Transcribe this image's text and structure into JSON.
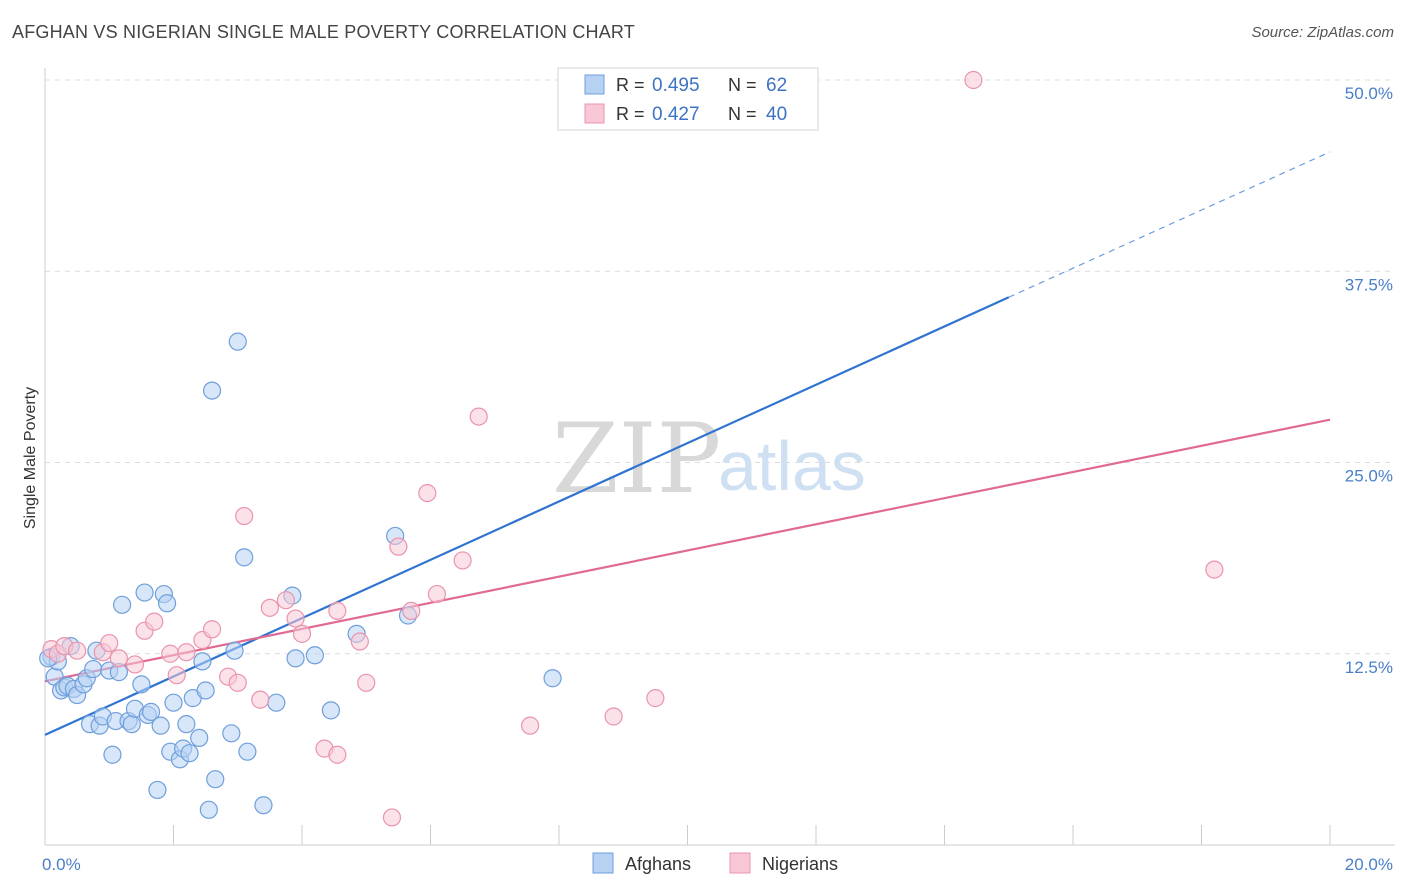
{
  "title": "AFGHAN VS NIGERIAN SINGLE MALE POVERTY CORRELATION CHART",
  "source": "Source: ZipAtlas.com",
  "watermark": {
    "zip": "ZIP",
    "atlas": "atlas"
  },
  "chart_data": {
    "type": "scatter",
    "ylabel": "Single Male Poverty",
    "xlim": [
      0,
      20
    ],
    "ylim": [
      0,
      50
    ],
    "x_ticks": [
      {
        "value": 0,
        "label": "0.0%"
      },
      {
        "value": 20,
        "label": "20.0%"
      }
    ],
    "y_ticks": [
      {
        "value": 12.5,
        "label": "12.5%"
      },
      {
        "value": 25,
        "label": "25.0%"
      },
      {
        "value": 37.5,
        "label": "37.5%"
      },
      {
        "value": 50,
        "label": "50.0%"
      }
    ],
    "grid": true,
    "legend": {
      "placement": "top-center",
      "entries": [
        {
          "r_label": "R = ",
          "r": "0.495",
          "n_label": "N = ",
          "n": "62"
        },
        {
          "r_label": "R = ",
          "r": "0.427",
          "n_label": "N = ",
          "n": "40"
        }
      ]
    },
    "series": [
      {
        "name": "Afghans",
        "color": "#6f9fdc",
        "fill": "#b7d1f2",
        "trend": {
          "x0": 0,
          "y0": 7.2,
          "x1": 15,
          "y1": 35.8,
          "dash_to_x": 20,
          "dash_to_y": 45.3,
          "color": "#2f74d0"
        },
        "points": [
          [
            0.1,
            12.3
          ],
          [
            0.15,
            11.0
          ],
          [
            0.2,
            12.0
          ],
          [
            0.25,
            10.1
          ],
          [
            0.3,
            10.3
          ],
          [
            0.35,
            10.4
          ],
          [
            0.4,
            13.0
          ],
          [
            0.45,
            10.2
          ],
          [
            0.5,
            9.8
          ],
          [
            0.6,
            10.5
          ],
          [
            0.65,
            10.9
          ],
          [
            0.7,
            7.9
          ],
          [
            0.75,
            11.5
          ],
          [
            0.8,
            12.7
          ],
          [
            0.85,
            7.8
          ],
          [
            0.9,
            8.4
          ],
          [
            1.0,
            11.4
          ],
          [
            1.05,
            5.9
          ],
          [
            1.1,
            8.1
          ],
          [
            1.15,
            11.3
          ],
          [
            1.2,
            15.7
          ],
          [
            1.3,
            8.1
          ],
          [
            1.35,
            7.9
          ],
          [
            1.4,
            8.9
          ],
          [
            1.5,
            10.5
          ],
          [
            1.55,
            16.5
          ],
          [
            1.6,
            8.5
          ],
          [
            1.65,
            8.7
          ],
          [
            1.75,
            3.6
          ],
          [
            1.8,
            7.8
          ],
          [
            1.85,
            16.4
          ],
          [
            1.9,
            15.8
          ],
          [
            1.95,
            6.1
          ],
          [
            2.0,
            9.3
          ],
          [
            2.1,
            5.6
          ],
          [
            2.15,
            6.3
          ],
          [
            2.2,
            7.9
          ],
          [
            2.25,
            6.0
          ],
          [
            2.3,
            9.6
          ],
          [
            2.4,
            7.0
          ],
          [
            2.45,
            12.0
          ],
          [
            2.5,
            10.1
          ],
          [
            2.55,
            2.3
          ],
          [
            2.6,
            29.7
          ],
          [
            2.65,
            4.3
          ],
          [
            2.9,
            7.3
          ],
          [
            2.95,
            12.7
          ],
          [
            3.0,
            32.9
          ],
          [
            3.1,
            18.8
          ],
          [
            3.15,
            6.1
          ],
          [
            3.4,
            2.6
          ],
          [
            3.6,
            9.3
          ],
          [
            3.85,
            16.3
          ],
          [
            3.9,
            12.2
          ],
          [
            4.2,
            12.4
          ],
          [
            4.45,
            8.8
          ],
          [
            4.85,
            13.8
          ],
          [
            5.45,
            20.2
          ],
          [
            5.65,
            15.0
          ],
          [
            7.9,
            10.9
          ],
          [
            10.45,
            50.0
          ],
          [
            0.05,
            12.2
          ]
        ]
      },
      {
        "name": "Nigerians",
        "color": "#ea94ae",
        "fill": "#f8c8d6",
        "trend": {
          "x0": 0,
          "y0": 10.7,
          "x1": 20,
          "y1": 27.8,
          "color": "#e06a93"
        },
        "points": [
          [
            0.1,
            12.8
          ],
          [
            0.2,
            12.5
          ],
          [
            0.3,
            13.0
          ],
          [
            0.5,
            12.7
          ],
          [
            0.9,
            12.6
          ],
          [
            1.0,
            13.2
          ],
          [
            1.15,
            12.2
          ],
          [
            1.4,
            11.8
          ],
          [
            1.55,
            14.0
          ],
          [
            1.7,
            14.6
          ],
          [
            1.95,
            12.5
          ],
          [
            2.05,
            11.1
          ],
          [
            2.2,
            12.6
          ],
          [
            2.45,
            13.4
          ],
          [
            2.6,
            14.1
          ],
          [
            2.85,
            11.0
          ],
          [
            3.0,
            10.6
          ],
          [
            3.1,
            21.5
          ],
          [
            3.35,
            9.5
          ],
          [
            3.5,
            15.5
          ],
          [
            3.75,
            16.0
          ],
          [
            3.9,
            14.8
          ],
          [
            4.0,
            13.8
          ],
          [
            4.35,
            6.3
          ],
          [
            4.55,
            15.3
          ],
          [
            4.55,
            5.9
          ],
          [
            4.9,
            13.3
          ],
          [
            5.0,
            10.6
          ],
          [
            5.4,
            1.8
          ],
          [
            5.5,
            19.5
          ],
          [
            5.7,
            15.3
          ],
          [
            5.95,
            23.0
          ],
          [
            6.1,
            16.4
          ],
          [
            6.5,
            18.6
          ],
          [
            6.75,
            28.0
          ],
          [
            7.55,
            7.8
          ],
          [
            8.85,
            8.4
          ],
          [
            9.5,
            9.6
          ],
          [
            14.45,
            50.0
          ],
          [
            18.2,
            18.0
          ]
        ]
      }
    ]
  }
}
